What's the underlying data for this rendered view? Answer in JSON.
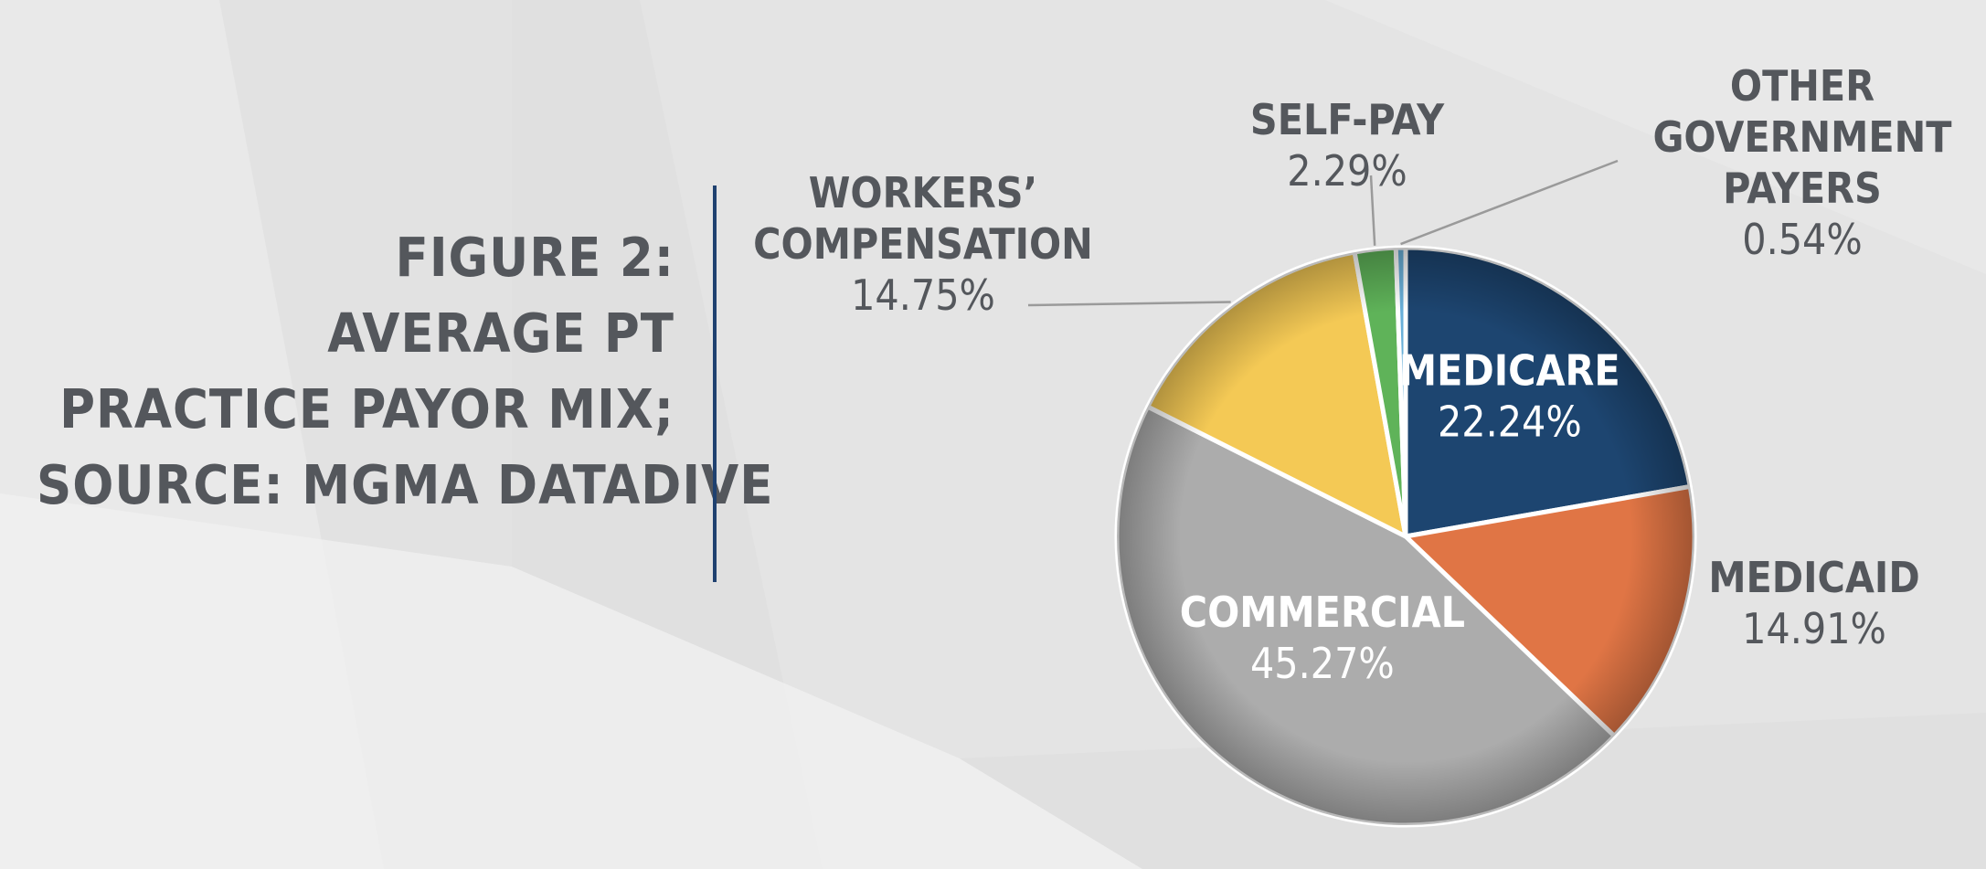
{
  "title_lines": [
    "FIGURE 2:",
    "AVERAGE PT",
    "PRACTICE PAYOR MIX;",
    "SOURCE: MGMA DATADIVE"
  ],
  "colors": {
    "text": "#54575c",
    "divider": "#1f4170",
    "background": "#e4e4e4"
  },
  "chart_data": {
    "type": "pie",
    "title": "FIGURE 2: AVERAGE PT PRACTICE PAYOR MIX; SOURCE: MGMA DATADIVE",
    "slices": [
      {
        "label_lines": [
          "MEDICARE"
        ],
        "value": 22.24,
        "value_text": "22.24%",
        "color": "#1d4570",
        "label_position": "inside"
      },
      {
        "label_lines": [
          "MEDICAID"
        ],
        "value": 14.91,
        "value_text": "14.91%",
        "color": "#e07545",
        "label_position": "outside-right"
      },
      {
        "label_lines": [
          "COMMERCIAL"
        ],
        "value": 45.27,
        "value_text": "45.27%",
        "color": "#acacac",
        "label_position": "inside"
      },
      {
        "label_lines": [
          "WORKERS’",
          "COMPENSATION"
        ],
        "value": 14.75,
        "value_text": "14.75%",
        "color": "#f4c955",
        "label_position": "outside-left"
      },
      {
        "label_lines": [
          "SELF-PAY"
        ],
        "value": 2.29,
        "value_text": "2.29%",
        "color": "#5fb359",
        "label_position": "outside-top"
      },
      {
        "label_lines": [
          "OTHER",
          "GOVERNMENT",
          "PAYERS"
        ],
        "value": 0.54,
        "value_text": "0.54%",
        "color": "#6ab0d9",
        "label_position": "outside-top-right"
      }
    ],
    "legend": "none"
  }
}
